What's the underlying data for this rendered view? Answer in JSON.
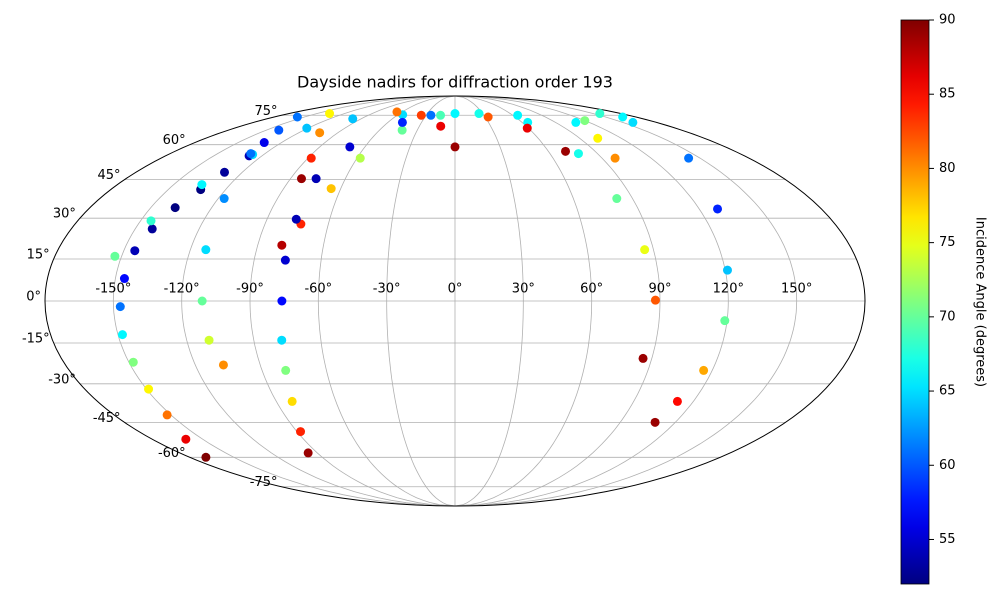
{
  "chart_data": {
    "type": "scatter",
    "projection": "mollweide",
    "title": "Dayside nadirs for diffraction order 193",
    "colorbar_label": "Incidence Angle (degrees)",
    "colormap": "jet",
    "clim": [
      52,
      90
    ],
    "cticks": [
      55,
      60,
      65,
      70,
      75,
      80,
      85,
      90
    ],
    "xlim": [
      -180,
      180
    ],
    "ylim": [
      -90,
      90
    ],
    "grid": true,
    "xticks": [
      {
        "value": -150,
        "label": "-150°"
      },
      {
        "value": -120,
        "label": "-120°"
      },
      {
        "value": -90,
        "label": "-90°"
      },
      {
        "value": -60,
        "label": "-60°"
      },
      {
        "value": -30,
        "label": "-30°"
      },
      {
        "value": 0,
        "label": "0°"
      },
      {
        "value": 30,
        "label": "30°"
      },
      {
        "value": 60,
        "label": "60°"
      },
      {
        "value": 90,
        "label": "90°"
      },
      {
        "value": 120,
        "label": "120°"
      },
      {
        "value": 150,
        "label": "150°"
      }
    ],
    "yticks": [
      {
        "value": -75,
        "label": "-75°"
      },
      {
        "value": -60,
        "label": "-60°"
      },
      {
        "value": -45,
        "label": "-45°"
      },
      {
        "value": -30,
        "label": "-30°"
      },
      {
        "value": -15,
        "label": "-15°"
      },
      {
        "value": 0,
        "label": "0°"
      },
      {
        "value": 15,
        "label": "15°"
      },
      {
        "value": 30,
        "label": "30°"
      },
      {
        "value": 45,
        "label": "45°"
      },
      {
        "value": 60,
        "label": "60°"
      },
      {
        "value": 75,
        "label": "75°"
      }
    ],
    "series": [
      {
        "x": [
          -169,
          -160,
          -152,
          -149,
          -148,
          -148,
          -147,
          -146,
          -145,
          -142,
          -138,
          -133,
          -130,
          -128,
          -132,
          -140
        ],
        "y": [
          -60,
          -52,
          -42,
          -32,
          -22,
          -12,
          -2,
          8,
          18,
          26,
          34,
          41,
          48,
          55,
          61,
          67
        ],
        "values": [
          90,
          86,
          81,
          76,
          71,
          66,
          61,
          57,
          54,
          53,
          52,
          52,
          53,
          54,
          56,
          60
        ]
      },
      {
        "x": [
          -153,
          -145,
          -135,
          -127,
          -121,
          -98,
          -55,
          0,
          65,
          108,
          159,
          143,
          129,
          121,
          119,
          116,
          112,
          109
        ],
        "y": [
          16,
          29,
          43,
          55.6,
          68,
          73,
          75.3,
          76,
          75,
          71,
          71,
          54,
          33.5,
          11,
          -7,
          -25,
          -36.7,
          -45
        ],
        "values": [
          70,
          68,
          66,
          65,
          64,
          64,
          65,
          66,
          66,
          66,
          65,
          61,
          58,
          64,
          70,
          79,
          85,
          89
        ]
      },
      {
        "x": [
          -79,
          -73,
          -65,
          -58,
          -42,
          -15,
          26,
          65,
          78,
          82,
          86,
          88,
          86
        ],
        "y": [
          20,
          27.8,
          41.4,
          54,
          67,
          75,
          76,
          71,
          56,
          37.5,
          18.4,
          0.3,
          -20.6
        ],
        "values": [
          88,
          84,
          78,
          73,
          70,
          69,
          67,
          66,
          67,
          70,
          75,
          82,
          89
        ]
      },
      {
        "x": [
          -96,
          -88,
          -82,
          -79,
          -77.5,
          -76,
          -76,
          -76,
          -76,
          -70,
          -47,
          -25
        ],
        "y": [
          -58,
          -48.8,
          -36.7,
          -25,
          -14,
          0,
          14.6,
          29.6,
          45.4,
          59,
          71,
          75
        ],
        "values": [
          89,
          84,
          77,
          71,
          65,
          57,
          55,
          54,
          54,
          55,
          58,
          61
        ]
      },
      {
        "x": [
          -107,
          -110,
          -111,
          -113,
          -117,
          -129,
          -157
        ],
        "y": [
          -23,
          -14,
          0,
          18.4,
          37.5,
          56,
          74
        ],
        "values": [
          80,
          74,
          70,
          65,
          62,
          61,
          61
        ]
      },
      {
        "x": [
          -84,
          -88,
          -104,
          -136
        ],
        "y": [
          45.4,
          54,
          65.7,
          76
        ],
        "values": [
          89,
          84,
          80,
          76
        ]
      },
      {
        "x": [
          0,
          -12,
          -35,
          -66
        ],
        "y": [
          59,
          69,
          75,
          77
        ],
        "values": [
          89,
          86,
          83,
          81
        ]
      },
      {
        "x": [
          33,
          59,
          71
        ],
        "y": [
          74,
          68,
          57
        ],
        "values": [
          82,
          86,
          89
        ]
      },
      {
        "x": [
          98,
          103,
          120,
          157,
          167
        ],
        "y": [
          54,
          63,
          72,
          76,
          74
        ],
        "values": [
          80,
          76,
          71,
          68,
          66
        ]
      }
    ]
  }
}
